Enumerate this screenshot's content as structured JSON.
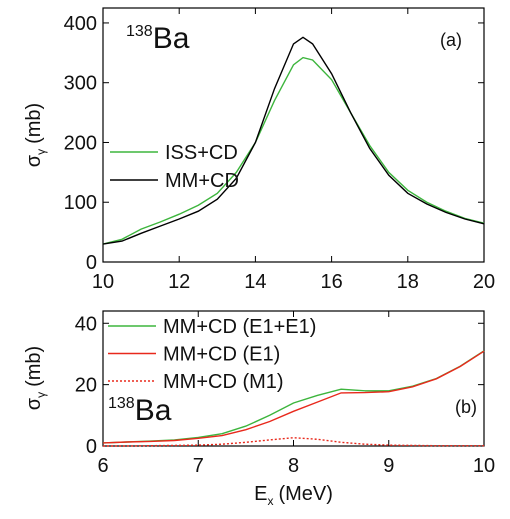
{
  "chart_data": [
    {
      "type": "line",
      "panel_label": "(a)",
      "annotation": {
        "superscript": "138",
        "text": "Ba"
      },
      "y_label": {
        "symbol": "σ",
        "subscript": "γ",
        "unit": "(mb)"
      },
      "x": [
        10,
        10.5,
        11,
        11.5,
        12,
        12.5,
        13,
        13.5,
        14,
        14.5,
        15,
        15.25,
        15.5,
        16,
        16.5,
        17,
        17.5,
        18,
        18.5,
        19,
        19.5,
        20
      ],
      "series": [
        {
          "name": "ISS+CD",
          "color": "#3db53d",
          "dash": "solid",
          "values": [
            30,
            38,
            55,
            67,
            80,
            95,
            115,
            150,
            200,
            270,
            330,
            342,
            338,
            305,
            250,
            195,
            150,
            120,
            100,
            85,
            73,
            65
          ]
        },
        {
          "name": "MM+CD",
          "color": "#000000",
          "dash": "solid",
          "values": [
            30,
            35,
            48,
            60,
            72,
            85,
            105,
            140,
            200,
            290,
            365,
            376,
            365,
            315,
            250,
            190,
            145,
            115,
            97,
            83,
            72,
            64
          ]
        }
      ],
      "xlim": [
        10,
        20
      ],
      "xticks": [
        10,
        12,
        14,
        16,
        18,
        20
      ],
      "ylim": [
        0,
        425
      ],
      "yticks": [
        0,
        100,
        200,
        300,
        400
      ],
      "grid": false
    },
    {
      "type": "line",
      "panel_label": "(b)",
      "annotation": {
        "superscript": "138",
        "text": "Ba"
      },
      "y_label": {
        "symbol": "σ",
        "subscript": "γ",
        "unit": "(mb)"
      },
      "x_label": {
        "symbol": "E",
        "subscript": "x",
        "unit": "(MeV)"
      },
      "x": [
        6,
        6.25,
        6.5,
        6.75,
        7,
        7.25,
        7.5,
        7.75,
        8,
        8.25,
        8.5,
        8.75,
        9,
        9.25,
        9.5,
        9.75,
        10
      ],
      "series": [
        {
          "name": "MM+CD (E1+E1)",
          "color": "#3db53d",
          "dash": "solid",
          "values": [
            1,
            1.3,
            1.6,
            2,
            2.8,
            4,
            6.5,
            10,
            14,
            16.5,
            18.5,
            18,
            18,
            19.5,
            22,
            26,
            31
          ]
        },
        {
          "name": "MM+CD (E1)",
          "color": "#e8291c",
          "dash": "solid",
          "values": [
            1,
            1.3,
            1.5,
            1.8,
            2.5,
            3.4,
            5.3,
            8,
            11.3,
            14.3,
            17.3,
            17.4,
            17.7,
            19.3,
            21.9,
            25.9,
            30.9
          ]
        },
        {
          "name": "MM+CD (M1)",
          "color": "#e8291c",
          "dash": "dotted",
          "values": [
            0,
            0,
            0.1,
            0.2,
            0.3,
            0.6,
            1.2,
            2,
            2.7,
            2.2,
            1.2,
            0.6,
            0.3,
            0.2,
            0.1,
            0.1,
            0.1
          ]
        }
      ],
      "xlim": [
        6,
        10
      ],
      "xticks": [
        6,
        7,
        8,
        9,
        10
      ],
      "ylim": [
        0,
        44
      ],
      "yticks": [
        0,
        20,
        40
      ],
      "grid": false
    }
  ]
}
